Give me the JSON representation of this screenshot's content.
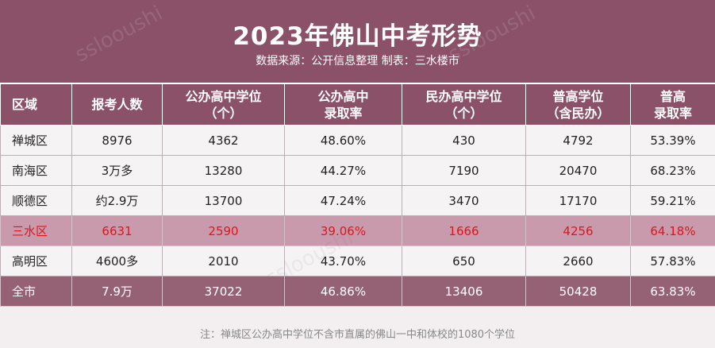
{
  "header": {
    "title": "2023年佛山中考形势",
    "subtitle": "数据来源：公开信息整理 制表：三水楼市"
  },
  "table": {
    "columns": [
      {
        "line1": "区域",
        "line2": ""
      },
      {
        "line1": "报考人数",
        "line2": ""
      },
      {
        "line1": "公办高中学位",
        "line2": "（个）"
      },
      {
        "line1": "公办高中",
        "line2": "录取率"
      },
      {
        "line1": "民办高中学位",
        "line2": "（个）"
      },
      {
        "line1": "普高学位",
        "line2": "（含民办）"
      },
      {
        "line1": "普高",
        "line2": "录取率"
      }
    ],
    "rows": [
      [
        "禅城区",
        "8976",
        "4362",
        "48.60%",
        "430",
        "4792",
        "53.39%"
      ],
      [
        "南海区",
        "3万多",
        "13280",
        "44.27%",
        "7190",
        "20470",
        "68.23%"
      ],
      [
        "顺德区",
        "约2.9万",
        "13700",
        "47.24%",
        "3470",
        "17170",
        "59.21%"
      ],
      [
        "三水区",
        "6631",
        "2590",
        "39.06%",
        "1666",
        "4256",
        "64.18%"
      ],
      [
        "高明区",
        "4600多",
        "2010",
        "43.70%",
        "650",
        "2660",
        "57.83%"
      ],
      [
        "全市",
        "7.9万",
        "37022",
        "46.86%",
        "13406",
        "50428",
        "63.83%"
      ]
    ]
  },
  "footnote": "注：禅城区公办高中学位不含市直属的佛山一中和体校的1080个学位",
  "watermark": "sslooushi",
  "colors": {
    "banner": "#8a5168",
    "highlight_row": "#c99aab",
    "highlight_text": "#e0141e",
    "total_row": "#956275"
  }
}
